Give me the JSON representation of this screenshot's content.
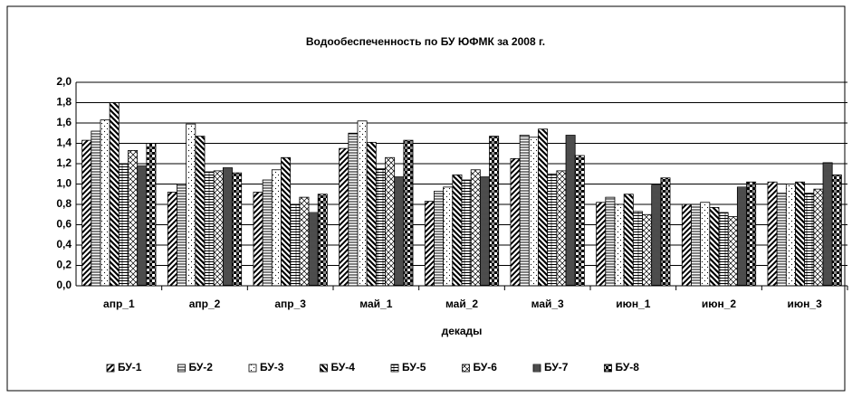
{
  "chart_data": {
    "type": "bar",
    "title": "Водообеспеченность по БУ ЮФМК за 2008 г.",
    "x_label": "декады",
    "categories": [
      "апр_1",
      "апр_2",
      "апр_3",
      "май_1",
      "май_2",
      "май_3",
      "июн_1",
      "июн_2",
      "июн_3"
    ],
    "series": [
      {
        "name": "БУ-1",
        "color": "#000000",
        "values": [
          1.43,
          0.92,
          0.92,
          1.35,
          0.83,
          1.25,
          0.82,
          0.8,
          1.02
        ]
      },
      {
        "name": "БУ-2",
        "color": "#000000",
        "values": [
          1.52,
          1.0,
          1.04,
          1.5,
          0.93,
          1.48,
          0.87,
          0.8,
          0.91
        ]
      },
      {
        "name": "БУ-3",
        "color": "#000000",
        "values": [
          1.63,
          1.59,
          1.14,
          1.62,
          0.97,
          1.46,
          0.8,
          0.82,
          1.0
        ]
      },
      {
        "name": "БУ-4",
        "color": "#000000",
        "values": [
          1.8,
          1.47,
          1.26,
          1.41,
          1.09,
          1.54,
          0.9,
          0.77,
          1.02
        ]
      },
      {
        "name": "БУ-5",
        "color": "#000000",
        "values": [
          1.2,
          1.12,
          0.8,
          1.15,
          1.04,
          1.1,
          0.73,
          0.72,
          0.91
        ]
      },
      {
        "name": "БУ-6",
        "color": "#000000",
        "values": [
          1.33,
          1.13,
          0.87,
          1.26,
          1.14,
          1.13,
          0.7,
          0.68,
          0.95
        ]
      },
      {
        "name": "БУ-7",
        "color": "#000000",
        "values": [
          1.18,
          1.16,
          0.72,
          1.07,
          1.07,
          1.48,
          0.99,
          0.97,
          1.21
        ]
      },
      {
        "name": "БУ-8",
        "color": "#000000",
        "values": [
          1.4,
          1.11,
          0.9,
          1.43,
          1.47,
          1.28,
          1.06,
          1.02,
          1.09
        ]
      }
    ],
    "ylim": [
      0,
      2
    ],
    "yticks": [
      {
        "value": 0,
        "label": "0,0"
      },
      {
        "value": 0.2,
        "label": "0,2"
      },
      {
        "value": 0.4,
        "label": "0,4"
      },
      {
        "value": 0.6,
        "label": "0,6"
      },
      {
        "value": 0.8,
        "label": "0,8"
      },
      {
        "value": 1.0,
        "label": "1,0"
      },
      {
        "value": 1.2,
        "label": "1,2"
      },
      {
        "value": 1.4,
        "label": "1,4"
      },
      {
        "value": 1.6,
        "label": "1,6"
      },
      {
        "value": 1.8,
        "label": "1,8"
      },
      {
        "value": 2.0,
        "label": "2,0"
      }
    ],
    "grid": true,
    "legend": "bottom"
  }
}
